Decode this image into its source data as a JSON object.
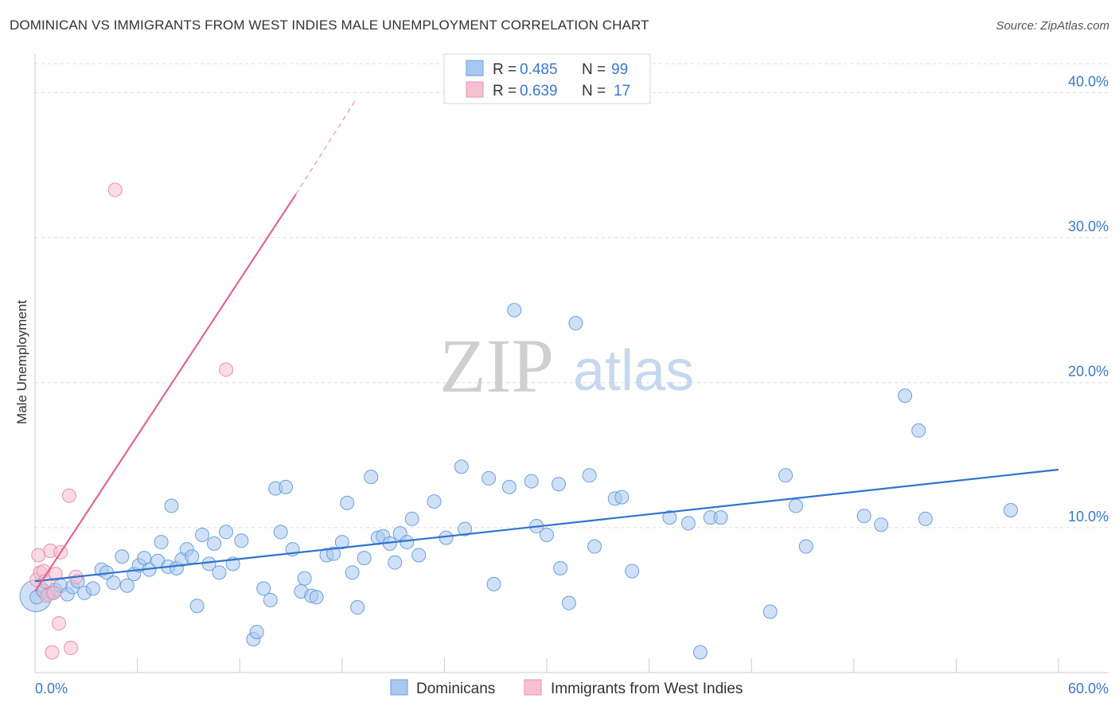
{
  "title": "DOMINICAN VS IMMIGRANTS FROM WEST INDIES MALE UNEMPLOYMENT CORRELATION CHART",
  "source": "Source: ZipAtlas.com",
  "watermark": {
    "zip": "ZIP",
    "atlas": "atlas"
  },
  "colors": {
    "blue_fill": "#a9c8f0",
    "blue_stroke": "#6a9fdc",
    "blue_line": "#2f74d0",
    "pink_fill": "#f7c0d0",
    "pink_stroke": "#ea8fac",
    "pink_line": "#e06690",
    "grid": "#dddddd",
    "axis_text": "#3a78c8"
  },
  "legend": {
    "rows": [
      {
        "r_label": "R =",
        "r_value": "0.485",
        "n_label": "N =",
        "n_value": "99",
        "series": "dominicans"
      },
      {
        "r_label": "R =",
        "r_value": "0.639",
        "n_label": "N =",
        "n_value": "17",
        "series": "west_indies"
      }
    ]
  },
  "chart_data": {
    "type": "scatter",
    "title": "DOMINICAN VS IMMIGRANTS FROM WEST INDIES MALE UNEMPLOYMENT CORRELATION CHART",
    "xlabel": "",
    "ylabel": "Male Unemployment",
    "xlim": [
      0,
      60
    ],
    "ylim": [
      0,
      42
    ],
    "x_tick_labels": [
      {
        "value": 0,
        "label": "0.0%"
      },
      {
        "value": 60,
        "label": "60.0%"
      }
    ],
    "y_tick_labels": [
      {
        "value": 10,
        "label": "10.0%"
      },
      {
        "value": 20,
        "label": "20.0%"
      },
      {
        "value": 30,
        "label": "30.0%"
      },
      {
        "value": 40,
        "label": "40.0%"
      }
    ],
    "grid": true,
    "legend_position": "top-center",
    "series": [
      {
        "name": "Dominicans",
        "key": "dominicans",
        "trend": {
          "x0": 0,
          "y0": 6.3,
          "x1": 60,
          "y1": 14.0
        },
        "points": [
          [
            0.1,
            5.2
          ],
          [
            0.5,
            5.6
          ],
          [
            0.8,
            5.4
          ],
          [
            1.0,
            5.5
          ],
          [
            1.2,
            5.7
          ],
          [
            1.5,
            6.0
          ],
          [
            1.9,
            5.4
          ],
          [
            2.2,
            5.9
          ],
          [
            2.5,
            6.3
          ],
          [
            2.9,
            5.5
          ],
          [
            3.4,
            5.8
          ],
          [
            3.9,
            7.1
          ],
          [
            4.2,
            6.9
          ],
          [
            4.6,
            6.2
          ],
          [
            5.1,
            8.0
          ],
          [
            5.4,
            6.0
          ],
          [
            5.8,
            6.8
          ],
          [
            6.1,
            7.4
          ],
          [
            6.4,
            7.9
          ],
          [
            6.7,
            7.1
          ],
          [
            7.2,
            7.7
          ],
          [
            7.4,
            9.0
          ],
          [
            7.8,
            7.3
          ],
          [
            8.0,
            11.5
          ],
          [
            8.3,
            7.2
          ],
          [
            8.6,
            7.8
          ],
          [
            8.9,
            8.5
          ],
          [
            9.2,
            8.0
          ],
          [
            9.5,
            4.6
          ],
          [
            9.8,
            9.5
          ],
          [
            10.2,
            7.5
          ],
          [
            10.5,
            8.9
          ],
          [
            10.8,
            6.9
          ],
          [
            11.2,
            9.7
          ],
          [
            11.6,
            7.5
          ],
          [
            12.1,
            9.1
          ],
          [
            12.8,
            2.3
          ],
          [
            13.0,
            2.8
          ],
          [
            13.4,
            5.8
          ],
          [
            13.8,
            5.0
          ],
          [
            14.1,
            12.7
          ],
          [
            14.4,
            9.7
          ],
          [
            14.7,
            12.8
          ],
          [
            15.1,
            8.5
          ],
          [
            15.6,
            5.6
          ],
          [
            15.8,
            6.5
          ],
          [
            16.2,
            5.3
          ],
          [
            16.5,
            5.2
          ],
          [
            17.1,
            8.1
          ],
          [
            17.5,
            8.2
          ],
          [
            18.0,
            9.0
          ],
          [
            18.3,
            11.7
          ],
          [
            18.6,
            6.9
          ],
          [
            18.9,
            4.5
          ],
          [
            19.3,
            7.9
          ],
          [
            19.7,
            13.5
          ],
          [
            20.1,
            9.3
          ],
          [
            20.4,
            9.4
          ],
          [
            20.8,
            8.9
          ],
          [
            21.1,
            7.6
          ],
          [
            21.4,
            9.6
          ],
          [
            21.8,
            9.0
          ],
          [
            22.1,
            10.6
          ],
          [
            22.5,
            8.1
          ],
          [
            23.4,
            11.8
          ],
          [
            24.1,
            9.3
          ],
          [
            25.0,
            14.2
          ],
          [
            25.2,
            9.9
          ],
          [
            26.6,
            13.4
          ],
          [
            26.9,
            6.1
          ],
          [
            27.8,
            12.8
          ],
          [
            28.1,
            25.0
          ],
          [
            29.1,
            13.2
          ],
          [
            29.4,
            10.1
          ],
          [
            30.0,
            9.5
          ],
          [
            30.7,
            13.0
          ],
          [
            30.8,
            7.2
          ],
          [
            31.3,
            4.8
          ],
          [
            31.7,
            24.1
          ],
          [
            32.5,
            13.6
          ],
          [
            32.8,
            8.7
          ],
          [
            34.0,
            12.0
          ],
          [
            34.4,
            12.1
          ],
          [
            35.0,
            7.0
          ],
          [
            37.2,
            10.7
          ],
          [
            38.3,
            10.3
          ],
          [
            39.0,
            1.4
          ],
          [
            39.6,
            10.7
          ],
          [
            40.2,
            10.7
          ],
          [
            43.1,
            4.2
          ],
          [
            44.0,
            13.6
          ],
          [
            44.6,
            11.5
          ],
          [
            45.2,
            8.7
          ],
          [
            48.6,
            10.8
          ],
          [
            49.6,
            10.2
          ],
          [
            51.0,
            19.1
          ],
          [
            51.8,
            16.7
          ],
          [
            52.2,
            10.6
          ],
          [
            57.2,
            11.2
          ]
        ],
        "large_point": [
          0.05,
          5.3
        ]
      },
      {
        "name": "Immigrants from West Indies",
        "key": "west_indies",
        "trend": {
          "x0": 0,
          "y0": 5.6,
          "x1": 15.3,
          "y1": 33.0,
          "x1_dashed": 18.8,
          "y1_dashed": 39.5
        },
        "points": [
          [
            0.1,
            6.4
          ],
          [
            0.2,
            8.1
          ],
          [
            0.3,
            6.9
          ],
          [
            0.5,
            7.0
          ],
          [
            0.6,
            6.3
          ],
          [
            0.7,
            5.3
          ],
          [
            0.9,
            8.4
          ],
          [
            1.0,
            1.4
          ],
          [
            1.1,
            5.5
          ],
          [
            1.2,
            6.8
          ],
          [
            1.4,
            3.4
          ],
          [
            1.5,
            8.3
          ],
          [
            2.0,
            12.2
          ],
          [
            2.1,
            1.7
          ],
          [
            2.4,
            6.6
          ],
          [
            4.7,
            33.3
          ],
          [
            11.2,
            20.9
          ]
        ]
      }
    ]
  },
  "bottom_legend": [
    {
      "label": "Dominicans",
      "series": "dominicans"
    },
    {
      "label": "Immigrants from West Indies",
      "series": "west_indies"
    }
  ]
}
